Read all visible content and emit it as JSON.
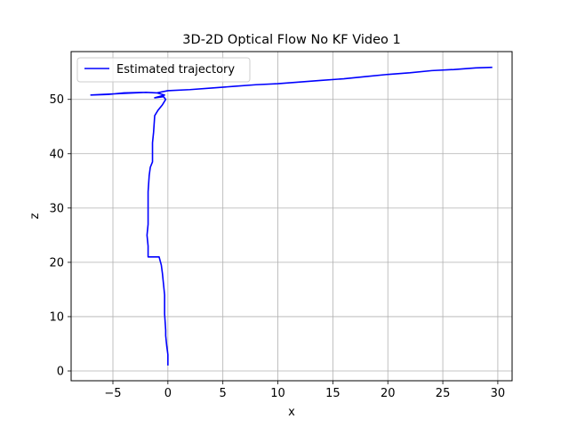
{
  "chart_data": {
    "type": "line",
    "title": "3D-2D Optical Flow No KF Video 1",
    "xlabel": "x",
    "ylabel": "z",
    "xlim": [
      -8.8,
      31.3
    ],
    "ylim": [
      -1.8,
      58.8
    ],
    "xticks": [
      -5,
      0,
      5,
      10,
      15,
      20,
      25,
      30
    ],
    "xtick_labels": [
      "−5",
      "0",
      "5",
      "10",
      "15",
      "20",
      "25",
      "30"
    ],
    "yticks": [
      0,
      10,
      20,
      30,
      40,
      50
    ],
    "ytick_labels": [
      "0",
      "10",
      "20",
      "30",
      "40",
      "50"
    ],
    "grid": true,
    "legend": "top-left",
    "series": [
      {
        "name": "Estimated trajectory",
        "color": "#0000ff",
        "points": [
          [
            0.0,
            1.0
          ],
          [
            0.0,
            3.0
          ],
          [
            -0.1,
            4.5
          ],
          [
            -0.2,
            6.5
          ],
          [
            -0.2,
            7.5
          ],
          [
            -0.3,
            10.5
          ],
          [
            -0.3,
            12.0
          ],
          [
            -0.3,
            14.0
          ],
          [
            -0.4,
            16.0
          ],
          [
            -0.5,
            18.0
          ],
          [
            -0.6,
            19.5
          ],
          [
            -0.8,
            21.0
          ],
          [
            -1.8,
            21.0
          ],
          [
            -1.8,
            23.0
          ],
          [
            -1.9,
            25.0
          ],
          [
            -1.8,
            27.0
          ],
          [
            -1.8,
            30.0
          ],
          [
            -1.8,
            33.0
          ],
          [
            -1.7,
            36.0
          ],
          [
            -1.6,
            37.5
          ],
          [
            -1.4,
            38.5
          ],
          [
            -1.4,
            40.0
          ],
          [
            -1.4,
            42.0
          ],
          [
            -1.3,
            44.0
          ],
          [
            -1.2,
            47.0
          ],
          [
            -0.9,
            48.0
          ],
          [
            -0.5,
            49.0
          ],
          [
            -0.2,
            50.0
          ],
          [
            -0.4,
            50.5
          ],
          [
            -1.2,
            50.3
          ],
          [
            -0.3,
            50.8
          ],
          [
            -1.0,
            51.2
          ],
          [
            -2.0,
            51.3
          ],
          [
            -4.0,
            51.2
          ],
          [
            -5.5,
            50.9
          ],
          [
            -7.0,
            50.8
          ],
          [
            -6.0,
            50.9
          ],
          [
            -4.0,
            51.1
          ],
          [
            -2.0,
            51.3
          ],
          [
            -1.0,
            51.2
          ],
          [
            0.0,
            51.6
          ],
          [
            2.0,
            51.8
          ],
          [
            4.0,
            52.1
          ],
          [
            6.0,
            52.4
          ],
          [
            8.0,
            52.7
          ],
          [
            10.0,
            52.9
          ],
          [
            12.0,
            53.2
          ],
          [
            14.0,
            53.5
          ],
          [
            16.0,
            53.8
          ],
          [
            18.0,
            54.2
          ],
          [
            20.0,
            54.6
          ],
          [
            22.0,
            54.9
          ],
          [
            24.0,
            55.3
          ],
          [
            26.0,
            55.5
          ],
          [
            28.0,
            55.8
          ],
          [
            29.5,
            55.9
          ]
        ]
      }
    ]
  }
}
